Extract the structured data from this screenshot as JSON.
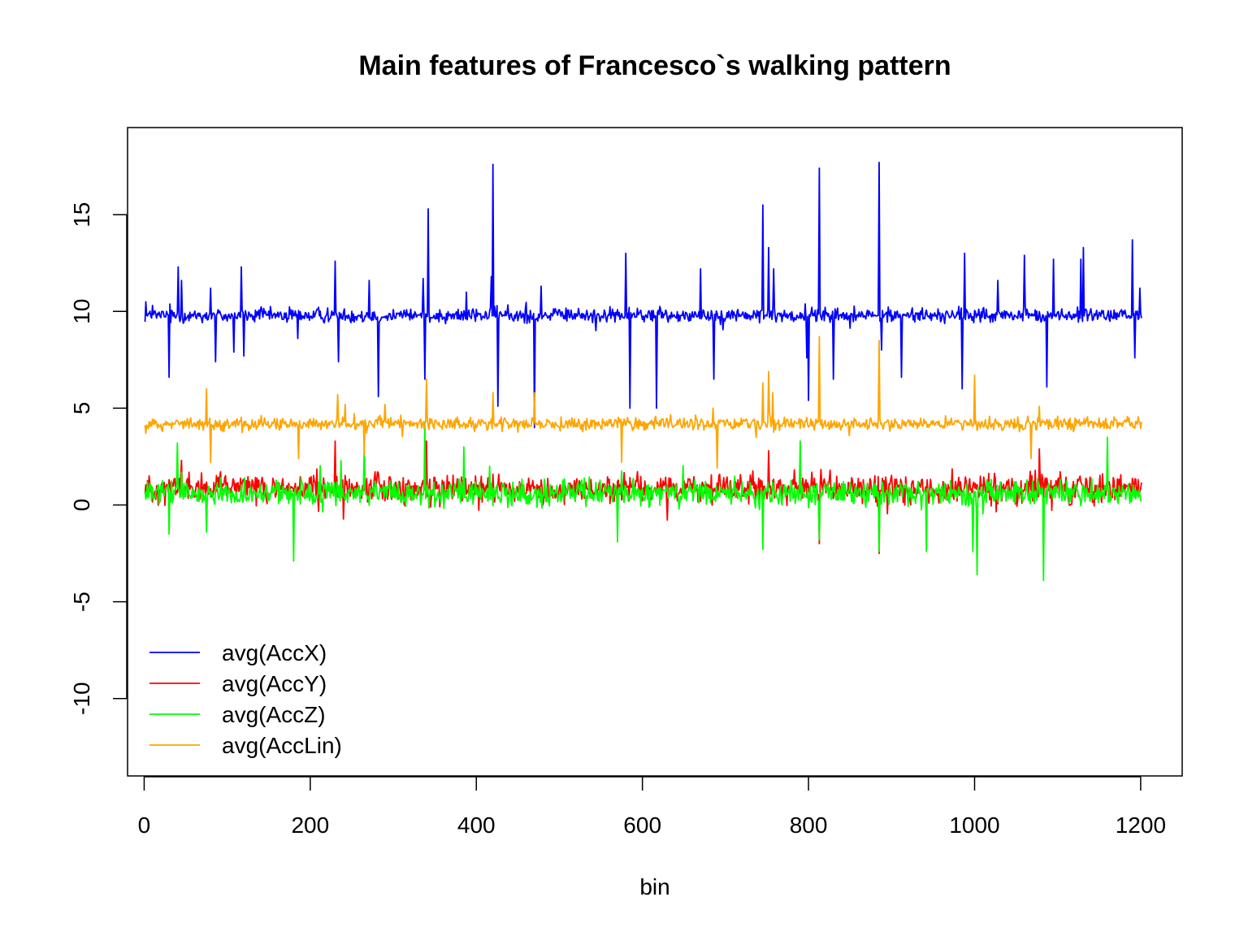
{
  "chart_data": {
    "type": "line",
    "title": "Main features of Francesco`s walking pattern",
    "xlabel": "bin",
    "ylabel": "",
    "xlim": [
      -20,
      1250
    ],
    "ylim": [
      -14,
      19.5
    ],
    "x_ticks": [
      0,
      200,
      400,
      600,
      800,
      1000,
      1200
    ],
    "y_ticks": [
      -10,
      -5,
      0,
      5,
      10,
      15
    ],
    "x_tick_labels": [
      "0",
      "200",
      "400",
      "600",
      "800",
      "1000",
      "1200"
    ],
    "y_tick_labels": [
      "-10",
      "-5",
      "0",
      "5",
      "10",
      "15"
    ],
    "x_range": [
      1,
      1201
    ],
    "grid": false,
    "legend_position": "bottom-left",
    "series": [
      {
        "name": "avg(AccX)",
        "color": "#0000ff",
        "baseline": 9.8,
        "noise": 0.28,
        "peaks": [
          [
            2,
            10.5
          ],
          [
            30,
            6.6
          ],
          [
            41,
            12.3
          ],
          [
            45,
            11.6
          ],
          [
            80,
            11.2
          ],
          [
            86,
            7.4
          ],
          [
            108,
            7.9
          ],
          [
            117,
            12.3
          ],
          [
            120,
            7.7
          ],
          [
            185,
            8.6
          ],
          [
            230,
            12.6
          ],
          [
            234,
            7.4
          ],
          [
            271,
            11.6
          ],
          [
            282,
            5.6
          ],
          [
            336,
            11.7
          ],
          [
            338,
            6.5
          ],
          [
            342,
            15.3
          ],
          [
            388,
            11.0
          ],
          [
            418,
            11.8
          ],
          [
            420,
            17.6
          ],
          [
            426,
            5.1
          ],
          [
            470,
            4.0
          ],
          [
            478,
            11.3
          ],
          [
            580,
            13.0
          ],
          [
            585,
            5.0
          ],
          [
            617,
            5.0
          ],
          [
            670,
            12.2
          ],
          [
            686,
            6.5
          ],
          [
            745,
            15.5
          ],
          [
            752,
            13.3
          ],
          [
            758,
            12.2
          ],
          [
            798,
            7.6
          ],
          [
            800,
            5.4
          ],
          [
            813,
            17.4
          ],
          [
            830,
            6.5
          ],
          [
            885,
            17.7
          ],
          [
            888,
            8.0
          ],
          [
            912,
            6.6
          ],
          [
            985,
            6.0
          ],
          [
            988,
            13.0
          ],
          [
            1028,
            11.6
          ],
          [
            1060,
            12.9
          ],
          [
            1087,
            6.1
          ],
          [
            1095,
            12.7
          ],
          [
            1128,
            12.7
          ],
          [
            1131,
            13.3
          ],
          [
            1190,
            13.7
          ],
          [
            1193,
            7.6
          ],
          [
            1199,
            11.2
          ]
        ]
      },
      {
        "name": "avg(AccY)",
        "color": "#ff0000",
        "baseline": 0.85,
        "noise": 0.55,
        "peaks": [
          [
            45,
            2.3
          ],
          [
            230,
            3.3
          ],
          [
            340,
            3.3
          ],
          [
            752,
            2.8
          ],
          [
            813,
            -2.0
          ],
          [
            885,
            -2.5
          ],
          [
            1078,
            2.9
          ]
        ]
      },
      {
        "name": "avg(AccZ)",
        "color": "#00ff00",
        "baseline": 0.6,
        "noise": 0.5,
        "peaks": [
          [
            30,
            -1.5
          ],
          [
            40,
            3.2
          ],
          [
            75,
            -1.4
          ],
          [
            180,
            -2.9
          ],
          [
            265,
            3.0
          ],
          [
            338,
            4.3
          ],
          [
            385,
            3.0
          ],
          [
            416,
            2.0
          ],
          [
            570,
            -1.9
          ],
          [
            745,
            -2.3
          ],
          [
            790,
            3.3
          ],
          [
            813,
            -1.8
          ],
          [
            885,
            -2.4
          ],
          [
            942,
            -2.4
          ],
          [
            998,
            -2.4
          ],
          [
            1003,
            -3.6
          ],
          [
            1083,
            -3.9
          ],
          [
            1160,
            3.5
          ]
        ]
      },
      {
        "name": "avg(AccLin)",
        "color": "#ffa500",
        "baseline": 4.2,
        "noise": 0.25,
        "peaks": [
          [
            2,
            3.7
          ],
          [
            75,
            6.0
          ],
          [
            80,
            2.2
          ],
          [
            186,
            2.4
          ],
          [
            233,
            5.7
          ],
          [
            242,
            5.2
          ],
          [
            265,
            2.6
          ],
          [
            290,
            5.2
          ],
          [
            340,
            6.5
          ],
          [
            420,
            5.8
          ],
          [
            470,
            5.8
          ],
          [
            575,
            2.2
          ],
          [
            685,
            5.0
          ],
          [
            690,
            1.9
          ],
          [
            745,
            6.3
          ],
          [
            752,
            6.9
          ],
          [
            757,
            5.8
          ],
          [
            813,
            8.7
          ],
          [
            885,
            8.5
          ],
          [
            1000,
            6.7
          ],
          [
            1068,
            2.4
          ],
          [
            1078,
            5.1
          ],
          [
            1198,
            4.3
          ]
        ]
      }
    ]
  }
}
